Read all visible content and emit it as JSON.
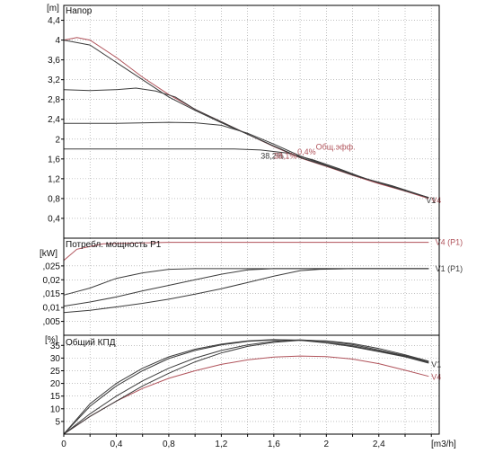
{
  "colors": {
    "dark": "#3c3c3c",
    "red": "#b0525a",
    "grid": "#9a9a9a",
    "frame": "#000000"
  },
  "x_axis": {
    "unit": "[m3/h]",
    "ticks": [
      "0",
      "0,4",
      "0,8",
      "1,2",
      "1,6",
      "2",
      "2,4"
    ],
    "range": [
      0,
      2.86
    ]
  },
  "chart_data": [
    {
      "type": "line",
      "title": "Напор",
      "ylabel": "[m]",
      "ylim": [
        0,
        4.7
      ],
      "yticks": [
        0.4,
        0.8,
        1.2,
        1.6,
        2,
        2.4,
        2.8,
        3.2,
        3.6,
        4,
        4.4
      ],
      "ytick_labels": [
        "0,4",
        "0,8",
        "1,2",
        "1,6",
        "2",
        "2,4",
        "2,8",
        "3,2",
        "3,6",
        "4",
        "4,4"
      ],
      "series": [
        {
          "name": "V4",
          "color": "red",
          "points": [
            [
              0,
              4.0
            ],
            [
              0.1,
              4.05
            ],
            [
              0.2,
              4.0
            ],
            [
              0.4,
              3.65
            ],
            [
              0.6,
              3.25
            ],
            [
              0.8,
              2.9
            ],
            [
              1.0,
              2.6
            ],
            [
              1.2,
              2.35
            ],
            [
              1.4,
              2.1
            ],
            [
              1.6,
              1.85
            ],
            [
              1.8,
              1.62
            ],
            [
              2.0,
              1.45
            ],
            [
              2.2,
              1.27
            ],
            [
              2.4,
              1.1
            ],
            [
              2.6,
              0.95
            ],
            [
              2.78,
              0.8
            ]
          ]
        },
        {
          "color": "dark",
          "points": [
            [
              0,
              4.0
            ],
            [
              0.2,
              3.9
            ],
            [
              0.4,
              3.55
            ],
            [
              0.6,
              3.2
            ],
            [
              0.8,
              2.85
            ],
            [
              1.0,
              2.58
            ],
            [
              1.2,
              2.33
            ],
            [
              1.4,
              2.1
            ],
            [
              1.6,
              1.86
            ],
            [
              1.8,
              1.63
            ],
            [
              2.0,
              1.46
            ],
            [
              2.2,
              1.28
            ],
            [
              2.4,
              1.12
            ],
            [
              2.6,
              0.96
            ],
            [
              2.78,
              0.82
            ]
          ]
        },
        {
          "color": "dark",
          "points": [
            [
              0,
              3.0
            ],
            [
              0.2,
              2.98
            ],
            [
              0.4,
              3.0
            ],
            [
              0.55,
              3.03
            ],
            [
              0.7,
              2.97
            ],
            [
              0.85,
              2.85
            ],
            [
              1.0,
              2.6
            ],
            [
              1.2,
              2.35
            ],
            [
              1.4,
              2.1
            ],
            [
              1.6,
              1.86
            ],
            [
              1.8,
              1.63
            ],
            [
              2.0,
              1.46
            ],
            [
              2.2,
              1.28
            ],
            [
              2.4,
              1.12
            ],
            [
              2.6,
              0.96
            ],
            [
              2.78,
              0.82
            ]
          ]
        },
        {
          "color": "dark",
          "points": [
            [
              0,
              2.32
            ],
            [
              0.4,
              2.32
            ],
            [
              0.8,
              2.34
            ],
            [
              1.0,
              2.33
            ],
            [
              1.2,
              2.28
            ],
            [
              1.4,
              2.12
            ],
            [
              1.6,
              1.9
            ],
            [
              1.8,
              1.66
            ],
            [
              2.0,
              1.47
            ],
            [
              2.2,
              1.29
            ],
            [
              2.4,
              1.12
            ],
            [
              2.6,
              0.96
            ],
            [
              2.78,
              0.82
            ]
          ]
        },
        {
          "color": "dark",
          "points": [
            [
              0,
              1.8
            ],
            [
              0.6,
              1.8
            ],
            [
              1.0,
              1.8
            ],
            [
              1.3,
              1.8
            ],
            [
              1.5,
              1.78
            ],
            [
              1.7,
              1.72
            ],
            [
              1.9,
              1.58
            ],
            [
              2.1,
              1.4
            ],
            [
              2.3,
              1.2
            ],
            [
              2.5,
              1.06
            ],
            [
              2.78,
              0.82
            ]
          ]
        }
      ],
      "labels": [
        {
          "text": "Общ.эфф.",
          "x": 1.92,
          "y": 1.84,
          "color": "red"
        },
        {
          "text": "38,2%",
          "x": 1.5,
          "y": 1.66,
          "color": "dark"
        },
        {
          "text": "38,1%",
          "x": 1.6,
          "y": 1.66,
          "color": "red"
        },
        {
          "text": "0,4%",
          "x": 1.78,
          "y": 1.74,
          "color": "red"
        },
        {
          "text": "V4",
          "x": 2.8,
          "y": 0.76,
          "color": "red"
        },
        {
          "text": "V1",
          "x": 2.76,
          "y": 0.76,
          "color": "dark"
        }
      ]
    },
    {
      "type": "line",
      "title": "Потребл. мощность P1",
      "ylabel": "[kW]",
      "ylim": [
        0,
        0.035
      ],
      "yticks": [
        0.005,
        0.01,
        0.015,
        0.02,
        0.025
      ],
      "ytick_labels": [
        ",005",
        "0,01",
        ",015",
        "0,02",
        ",025"
      ],
      "series": [
        {
          "name": "V4 (P1)",
          "color": "red",
          "points": [
            [
              0,
              0.027
            ],
            [
              0.1,
              0.031
            ],
            [
              0.3,
              0.033
            ],
            [
              0.8,
              0.0335
            ],
            [
              1.6,
              0.0335
            ],
            [
              2.4,
              0.0335
            ],
            [
              2.78,
              0.0335
            ]
          ]
        },
        {
          "name": "V1 (P1)",
          "color": "dark",
          "points": [
            [
              0,
              0.0145
            ],
            [
              0.2,
              0.017
            ],
            [
              0.4,
              0.0205
            ],
            [
              0.6,
              0.0225
            ],
            [
              0.8,
              0.0238
            ],
            [
              1.0,
              0.024
            ],
            [
              1.6,
              0.024
            ],
            [
              2.2,
              0.024
            ],
            [
              2.78,
              0.024
            ]
          ]
        },
        {
          "color": "dark",
          "points": [
            [
              0,
              0.0105
            ],
            [
              0.2,
              0.012
            ],
            [
              0.4,
              0.0138
            ],
            [
              0.6,
              0.016
            ],
            [
              0.8,
              0.018
            ],
            [
              1.0,
              0.02
            ],
            [
              1.2,
              0.022
            ],
            [
              1.4,
              0.0236
            ],
            [
              1.6,
              0.024
            ],
            [
              2.2,
              0.024
            ],
            [
              2.78,
              0.024
            ]
          ]
        },
        {
          "color": "dark",
          "points": [
            [
              0,
              0.0082
            ],
            [
              0.2,
              0.009
            ],
            [
              0.4,
              0.0102
            ],
            [
              0.6,
              0.0115
            ],
            [
              0.8,
              0.013
            ],
            [
              1.0,
              0.0148
            ],
            [
              1.2,
              0.0168
            ],
            [
              1.4,
              0.019
            ],
            [
              1.6,
              0.0213
            ],
            [
              1.8,
              0.0233
            ],
            [
              1.95,
              0.0238
            ],
            [
              2.2,
              0.024
            ],
            [
              2.78,
              0.024
            ]
          ]
        }
      ],
      "labels": [
        {
          "text": "V4 (P1)",
          "x": 2.83,
          "y": 0.0335,
          "color": "red"
        },
        {
          "text": "V1 (P1)",
          "x": 2.83,
          "y": 0.024,
          "color": "dark"
        }
      ]
    },
    {
      "type": "line",
      "title": "Общий КПД",
      "ylabel": "[%]",
      "ylim": [
        0,
        39
      ],
      "yticks": [
        5,
        10,
        15,
        20,
        25,
        30,
        35
      ],
      "ytick_labels": [
        "5",
        "10",
        "15",
        "20",
        "25",
        "30",
        "35"
      ],
      "series": [
        {
          "name": "V4",
          "color": "red",
          "points": [
            [
              0,
              0
            ],
            [
              0.2,
              7
            ],
            [
              0.4,
              13
            ],
            [
              0.6,
              18
            ],
            [
              0.8,
              22
            ],
            [
              1.0,
              25
            ],
            [
              1.2,
              27.5
            ],
            [
              1.4,
              29.3
            ],
            [
              1.6,
              30.4
            ],
            [
              1.8,
              30.8
            ],
            [
              2.0,
              30.6
            ],
            [
              2.2,
              29.6
            ],
            [
              2.4,
              27.8
            ],
            [
              2.6,
              25.2
            ],
            [
              2.78,
              22.8
            ]
          ]
        },
        {
          "color": "dark",
          "points": [
            [
              0,
              0
            ],
            [
              0.2,
              12
            ],
            [
              0.4,
              20
            ],
            [
              0.6,
              26
            ],
            [
              0.8,
              30.5
            ],
            [
              1.0,
              33.5
            ],
            [
              1.2,
              35.5
            ],
            [
              1.4,
              36.8
            ],
            [
              1.6,
              37.3
            ],
            [
              1.8,
              37
            ],
            [
              2.0,
              36
            ],
            [
              2.2,
              34.5
            ],
            [
              2.4,
              32.5
            ],
            [
              2.6,
              30.5
            ],
            [
              2.78,
              28
            ]
          ]
        },
        {
          "color": "dark",
          "points": [
            [
              0,
              0
            ],
            [
              0.2,
              11
            ],
            [
              0.4,
              19
            ],
            [
              0.6,
              25
            ],
            [
              0.8,
              29.8
            ],
            [
              1.0,
              33
            ],
            [
              1.2,
              35.2
            ],
            [
              1.4,
              36.6
            ],
            [
              1.6,
              37.2
            ],
            [
              1.8,
              37.1
            ],
            [
              2.0,
              36.2
            ],
            [
              2.2,
              34.8
            ],
            [
              2.4,
              32.8
            ],
            [
              2.6,
              30.7
            ],
            [
              2.78,
              28.3
            ]
          ]
        },
        {
          "color": "dark",
          "points": [
            [
              0,
              0
            ],
            [
              0.2,
              8
            ],
            [
              0.4,
              15
            ],
            [
              0.6,
              21
            ],
            [
              0.8,
              26
            ],
            [
              1.0,
              30
            ],
            [
              1.2,
              33
            ],
            [
              1.4,
              35.2
            ],
            [
              1.6,
              36.6
            ],
            [
              1.8,
              37.2
            ],
            [
              2.0,
              36.7
            ],
            [
              2.2,
              35.3
            ],
            [
              2.4,
              33.2
            ],
            [
              2.6,
              31
            ],
            [
              2.78,
              28.6
            ]
          ]
        },
        {
          "color": "dark",
          "points": [
            [
              0,
              0
            ],
            [
              0.2,
              7
            ],
            [
              0.4,
              13
            ],
            [
              0.6,
              19
            ],
            [
              0.8,
              24
            ],
            [
              1.0,
              28.5
            ],
            [
              1.2,
              32
            ],
            [
              1.4,
              34.6
            ],
            [
              1.6,
              36.2
            ],
            [
              1.8,
              37
            ],
            [
              2.0,
              36.8
            ],
            [
              2.2,
              35.7
            ],
            [
              2.4,
              33.8
            ],
            [
              2.6,
              31.3
            ],
            [
              2.78,
              28.8
            ]
          ]
        }
      ],
      "labels": [
        {
          "text": "V1",
          "x": 2.8,
          "y": 27.5,
          "color": "dark"
        },
        {
          "text": "V4",
          "x": 2.8,
          "y": 22.5,
          "color": "red"
        }
      ]
    }
  ]
}
